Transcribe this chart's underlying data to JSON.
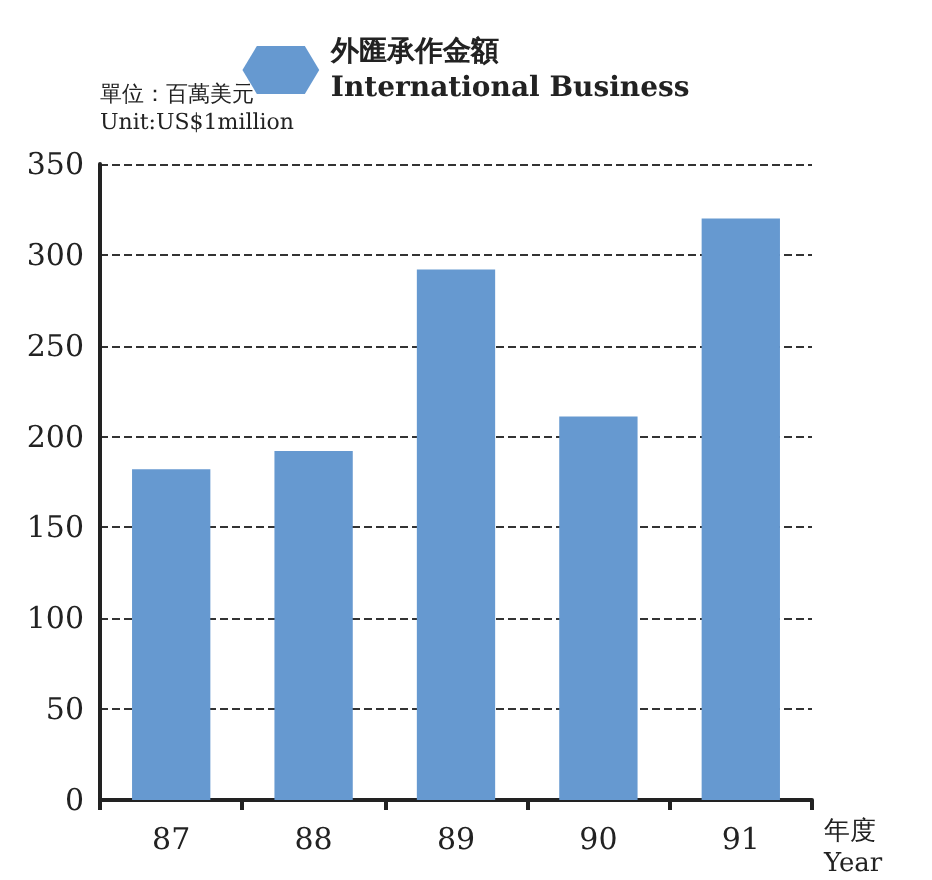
{
  "chart_data": {
    "type": "bar",
    "categories": [
      "87",
      "88",
      "89",
      "90",
      "91"
    ],
    "series": [
      {
        "name": "外匯承作金額\nInternational Business",
        "color": "#6699d0",
        "values": [
          182,
          192,
          292,
          211,
          320
        ]
      }
    ],
    "ylabel": "單位：百萬美元\nUnit:US$1million",
    "xlabel": "年度\nYear",
    "ylim": [
      0,
      350
    ],
    "yticks": [
      0,
      50,
      100,
      150,
      200,
      250,
      300,
      350
    ],
    "grid": "y",
    "legend": "top"
  }
}
